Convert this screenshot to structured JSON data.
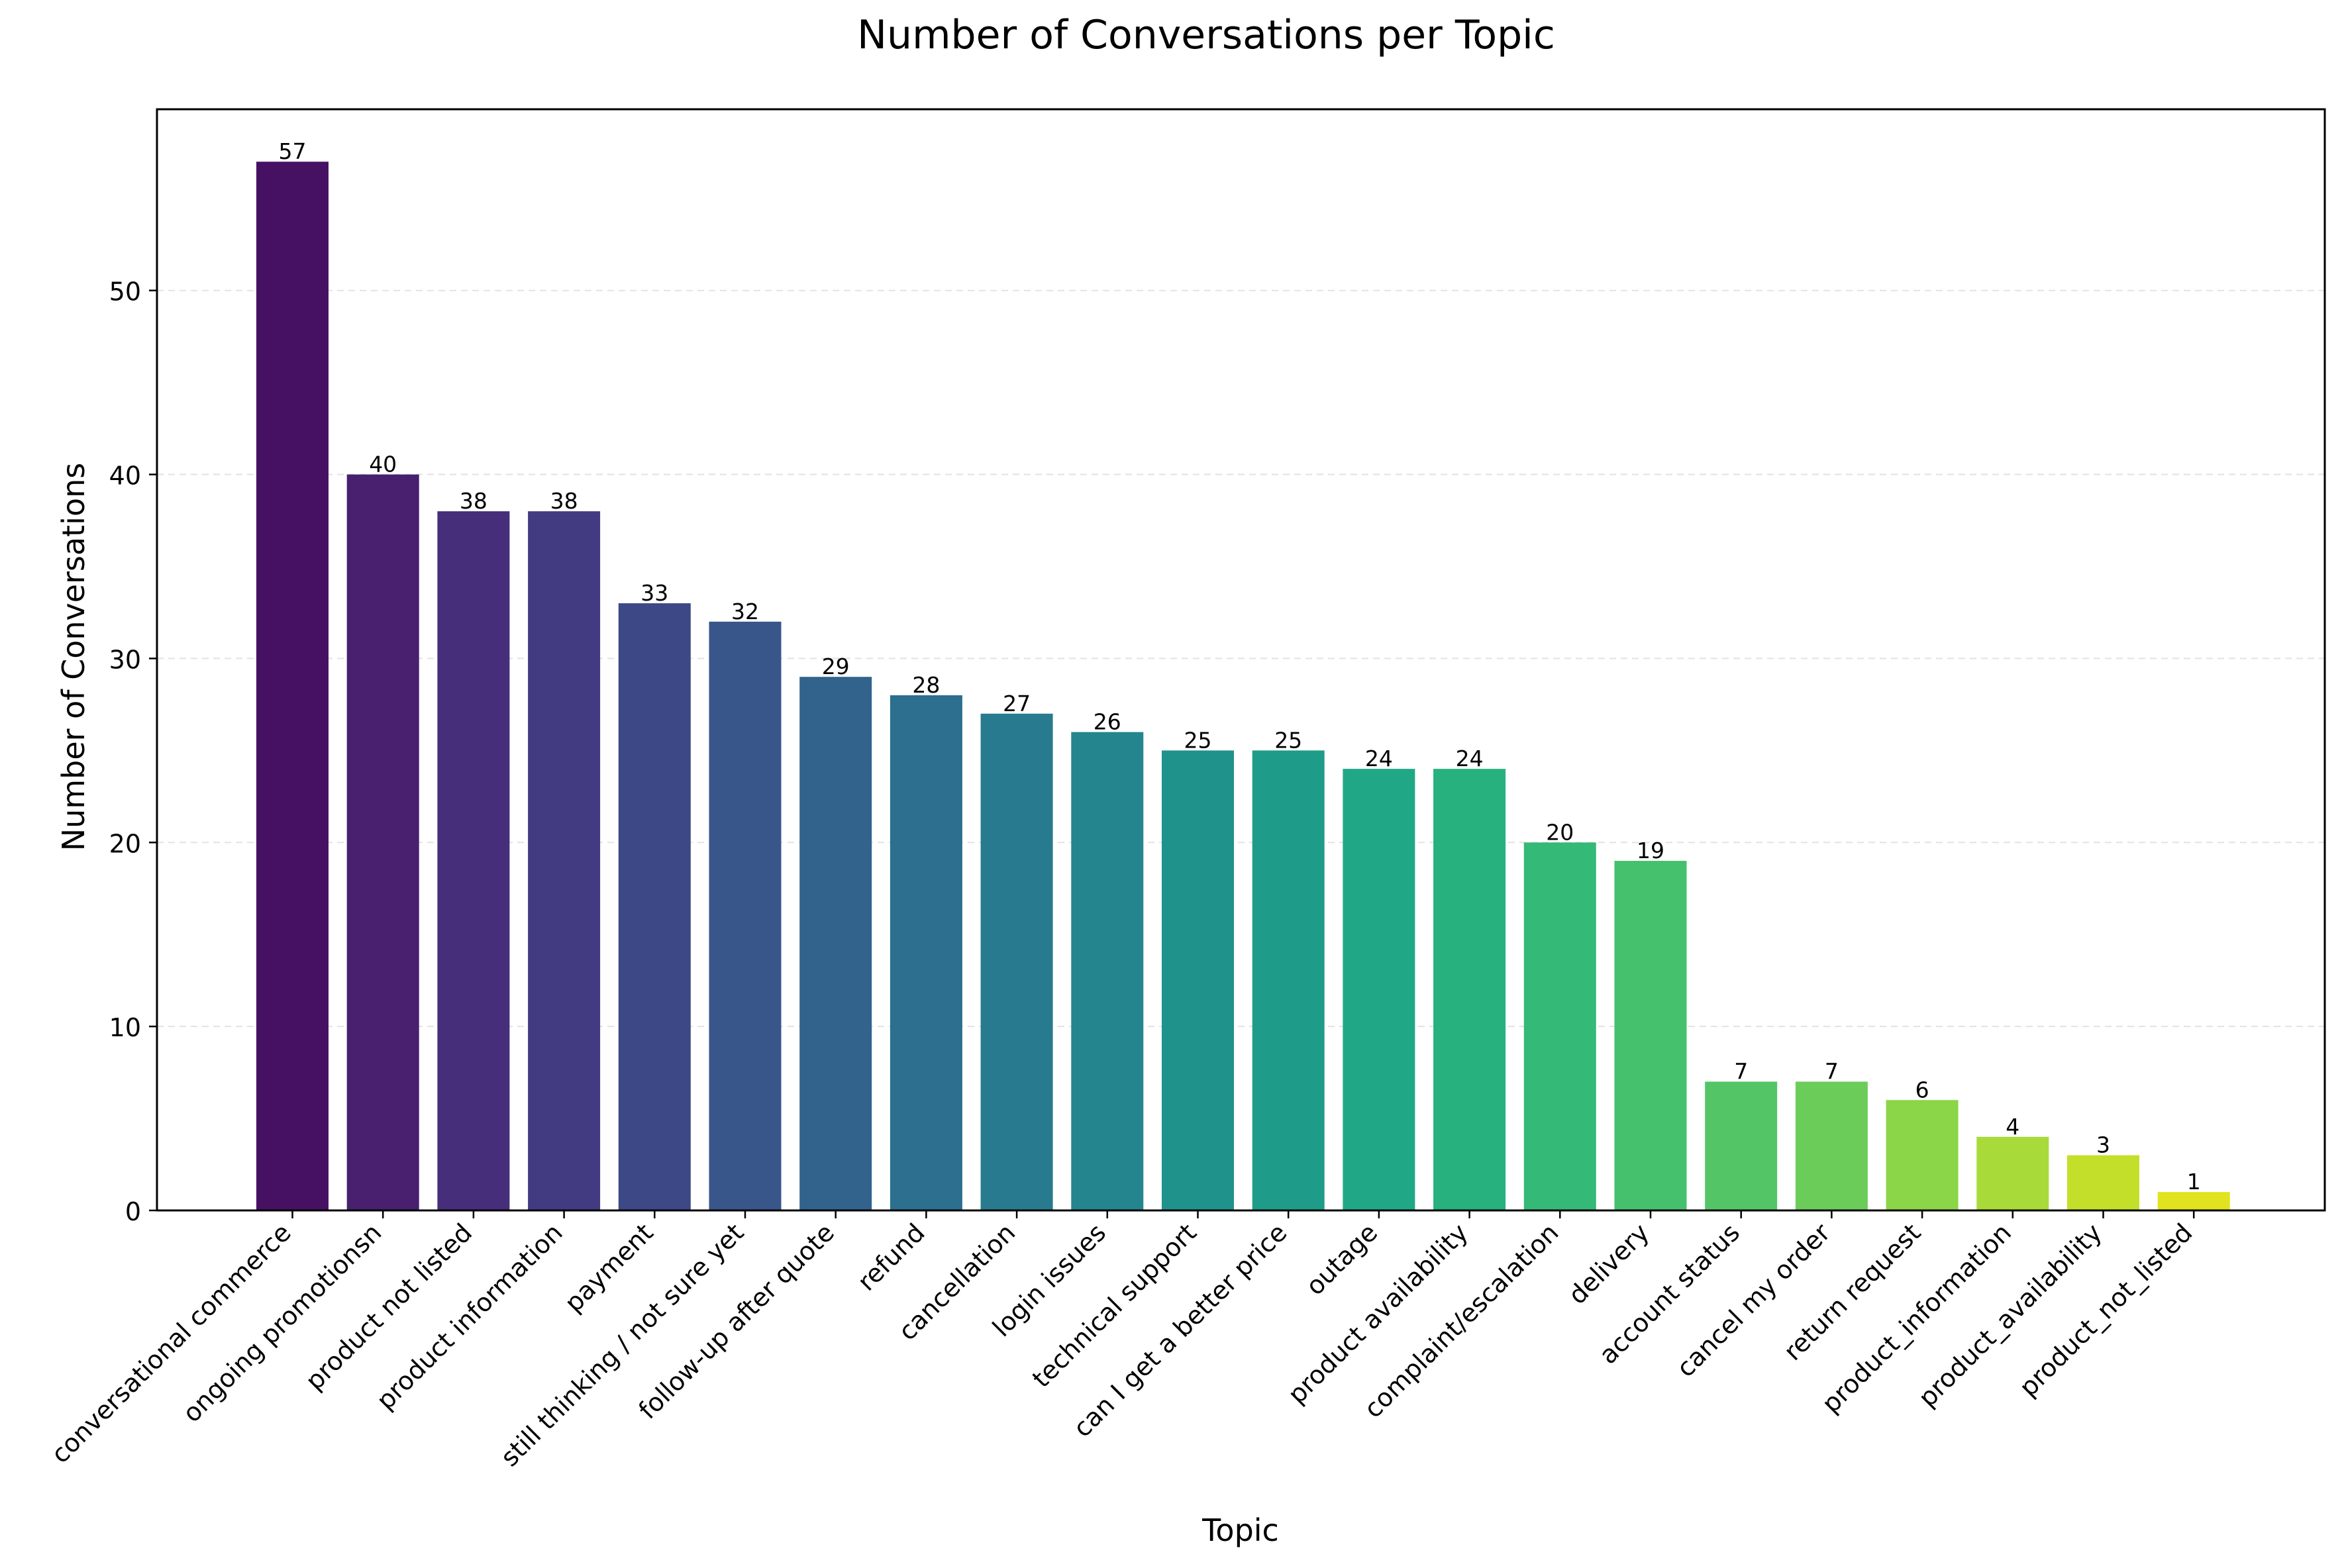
{
  "chart_data": {
    "type": "bar",
    "title": "Number of Conversations per Topic",
    "xlabel": "Topic",
    "ylabel": "Number of Conversations",
    "ylim": [
      0,
      59.85
    ],
    "yticks": [
      0,
      10,
      20,
      30,
      40,
      50
    ],
    "grid": "y-dashed",
    "colormap": "viridis",
    "categories": [
      "conversational commerce",
      "ongoing promotionsn",
      "product not listed",
      "product information",
      "payment",
      "still thinking / not sure yet",
      "follow-up after quote",
      "refund",
      "cancellation",
      "login issues",
      "technical support",
      "can I get a better price",
      "outage",
      "product availability",
      "complaint/escalation",
      "delivery",
      "account status",
      "cancel my order",
      "return request",
      "product_information",
      "product_availability",
      "product_not_listed"
    ],
    "values": [
      57,
      40,
      38,
      38,
      33,
      32,
      29,
      28,
      27,
      26,
      25,
      25,
      24,
      24,
      20,
      19,
      7,
      7,
      6,
      4,
      3,
      1
    ],
    "colors": [
      "#471163",
      "#48206f",
      "#462e7a",
      "#433b82",
      "#3d4886",
      "#38568a",
      "#31638c",
      "#2c6f8e",
      "#287b8e",
      "#24858e",
      "#20928c",
      "#1e9c89",
      "#20a886",
      "#26b17f",
      "#35b977",
      "#45c06d",
      "#54c566",
      "#6ccc5a",
      "#8bd548",
      "#a8da3a",
      "#c3df2a",
      "#e0e31d"
    ]
  }
}
